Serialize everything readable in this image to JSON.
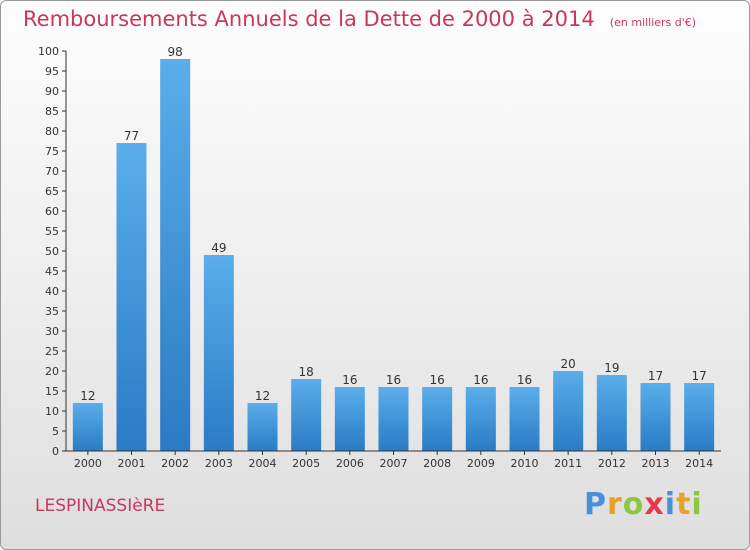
{
  "header": {
    "title": "Remboursements Annuels de la Dette de 2000 à 2014",
    "unit": "(en milliers d'€)"
  },
  "footer": {
    "commune": "LESPINASSIèRE",
    "brand": "Proxiti"
  },
  "colors": {
    "title": "#c8385a",
    "bar_top": "#5aaeea",
    "bar_bottom": "#2a7bc4",
    "axis": "#333333"
  },
  "chart_data": {
    "type": "bar",
    "title": "Remboursements Annuels de la Dette de 2000 à 2014",
    "xlabel": "",
    "ylabel": "",
    "categories": [
      "2000",
      "2001",
      "2002",
      "2003",
      "2004",
      "2005",
      "2006",
      "2007",
      "2008",
      "2009",
      "2010",
      "2011",
      "2012",
      "2013",
      "2014"
    ],
    "values": [
      12,
      77,
      98,
      49,
      12,
      18,
      16,
      16,
      16,
      16,
      16,
      20,
      19,
      17,
      17
    ],
    "ylim": [
      0,
      100
    ],
    "yticks": [
      0,
      5,
      10,
      15,
      20,
      25,
      30,
      35,
      40,
      45,
      50,
      55,
      60,
      65,
      70,
      75,
      80,
      85,
      90,
      95,
      100
    ],
    "grid": false,
    "legend": "none"
  }
}
